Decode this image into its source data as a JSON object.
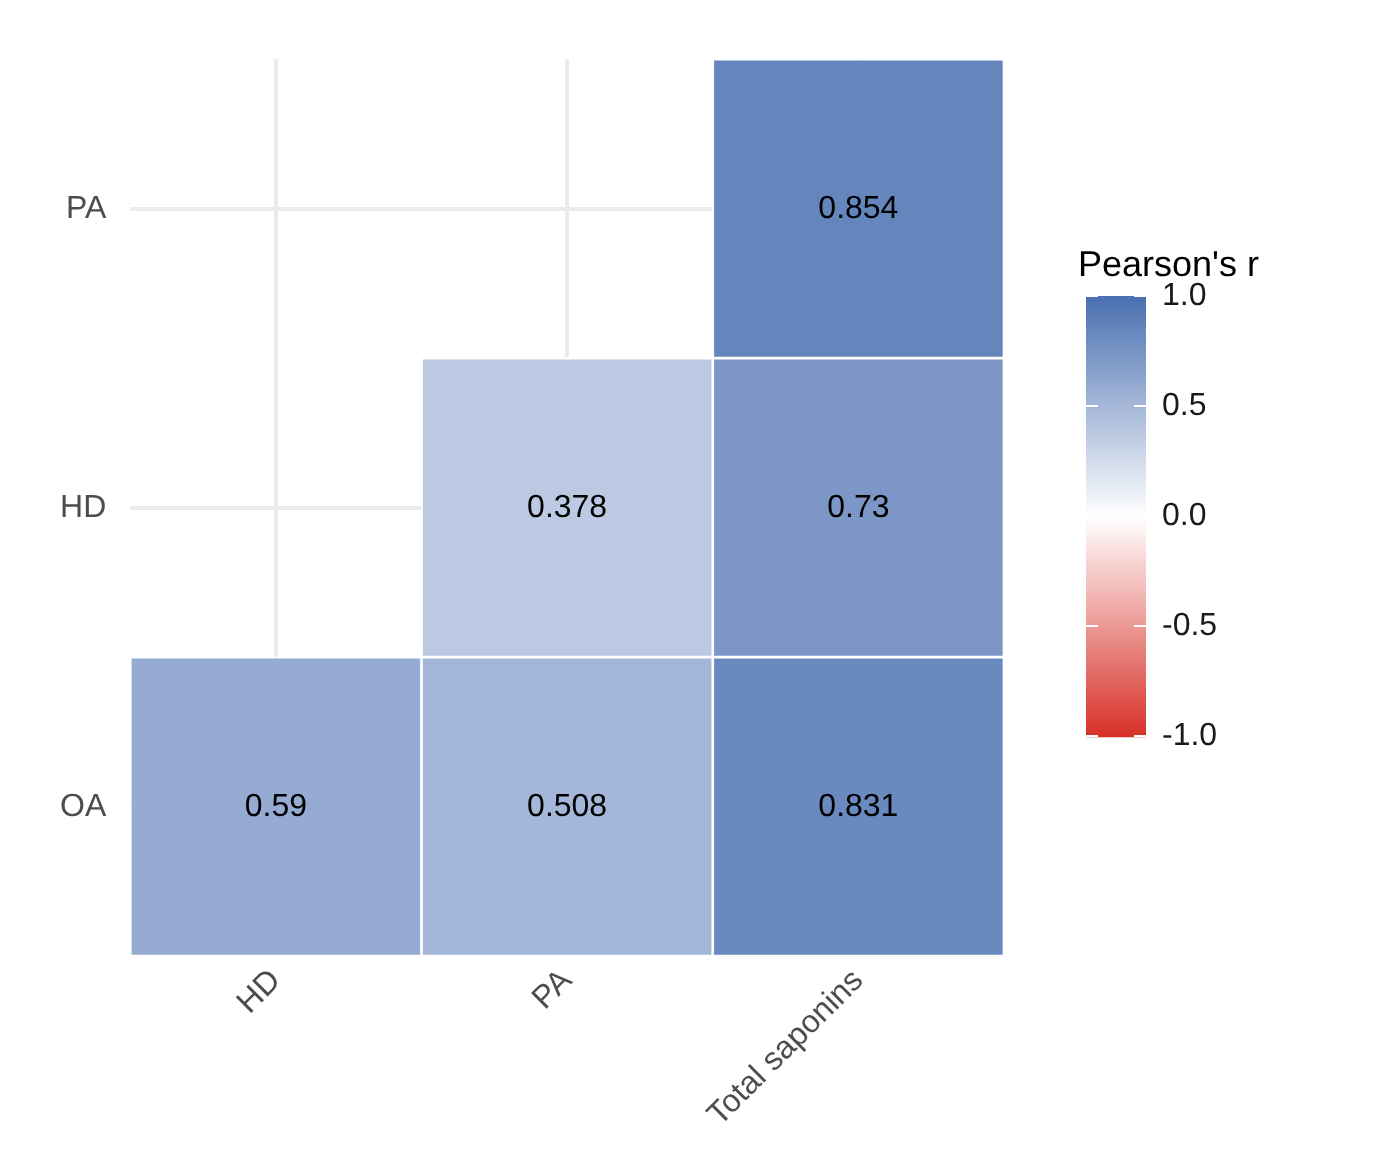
{
  "chart_data": {
    "type": "heatmap",
    "categories": [
      "HD",
      "PA",
      "Total saponins"
    ],
    "y_categories": [
      "PA",
      "HD",
      "OA"
    ],
    "cells": [
      [
        null,
        null,
        0.854
      ],
      [
        null,
        0.378,
        0.73
      ],
      [
        0.59,
        0.508,
        0.831
      ]
    ],
    "clabel": "Pearson's r",
    "clim": [
      -1,
      1
    ],
    "cticks": [
      {
        "value": -1,
        "label": "-1.0"
      },
      -0.5,
      {
        "value": 0,
        "label": "0.0"
      },
      0.5,
      {
        "value": 1,
        "label": "1.0"
      }
    ],
    "data_labels": true,
    "grid": true
  }
}
